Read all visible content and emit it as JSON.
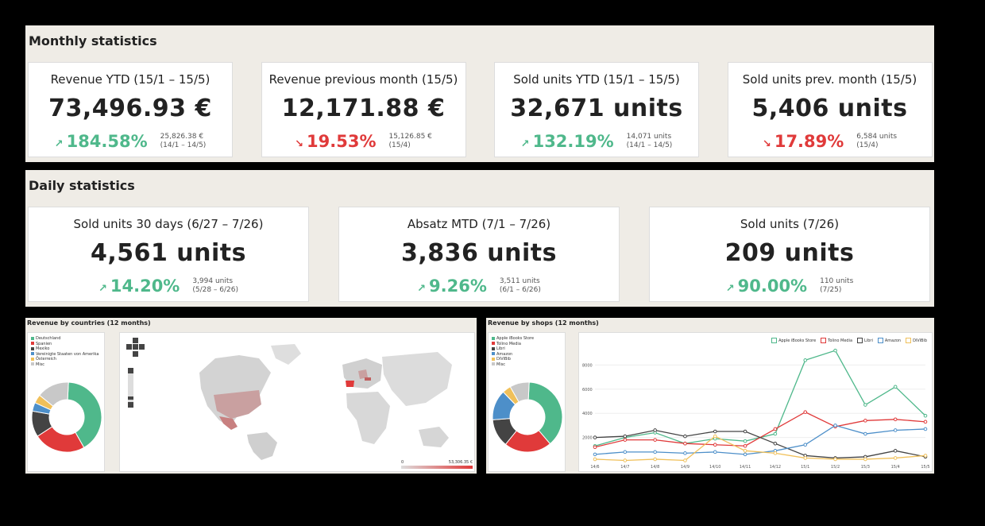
{
  "monthly": {
    "title": "Monthly statistics",
    "cards": [
      {
        "title": "Revenue YTD (15/1 – 15/5)",
        "value": "73,496.93 €",
        "pct": "184.58%",
        "dir": "up",
        "cmp1": "25,826.38 €",
        "cmp2": "(14/1 – 14/5)"
      },
      {
        "title": "Revenue previous month (15/5)",
        "value": "12,171.88 €",
        "pct": "19.53%",
        "dir": "down",
        "cmp1": "15,126.85 €",
        "cmp2": "(15/4)"
      },
      {
        "title": "Sold units YTD (15/1 – 15/5)",
        "value": "32,671 units",
        "pct": "132.19%",
        "dir": "up",
        "cmp1": "14,071 units",
        "cmp2": "(14/1 – 14/5)"
      },
      {
        "title": "Sold units prev. month (15/5)",
        "value": "5,406 units",
        "pct": "17.89%",
        "dir": "down",
        "cmp1": "6,584 units",
        "cmp2": "(15/4)"
      }
    ]
  },
  "daily": {
    "title": "Daily statistics",
    "cards": [
      {
        "title": "Sold units 30 days (6/27 – 7/26)",
        "value": "4,561 units",
        "pct": "14.20%",
        "dir": "up",
        "cmp1": "3,994 units",
        "cmp2": "(5/28 – 6/26)"
      },
      {
        "title": "Absatz MTD (7/1 – 7/26)",
        "value": "3,836 units",
        "pct": "9.26%",
        "dir": "up",
        "cmp1": "3,511 units",
        "cmp2": "(6/1 – 6/26)"
      },
      {
        "title": "Sold units (7/26)",
        "value": "209 units",
        "pct": "90.00%",
        "dir": "up",
        "cmp1": "110 units",
        "cmp2": "(7/25)"
      }
    ]
  },
  "arrows": {
    "up": "↗",
    "down": "↘"
  },
  "colors": {
    "up": "#4fb88b",
    "down": "#e03a3a"
  },
  "countries": {
    "title": "Revenue by countries (12 months)",
    "legend": [
      {
        "label": "Deutschland",
        "color": "#4fb88b"
      },
      {
        "label": "Spanien",
        "color": "#e03a3a"
      },
      {
        "label": "Mexiko",
        "color": "#444444"
      },
      {
        "label": "Vereinigte Staaten von Amerika",
        "color": "#4d8fc9"
      },
      {
        "label": "Österreich",
        "color": "#f0c05a"
      },
      {
        "label": "Misc",
        "color": "#c8c8c8"
      }
    ],
    "donut": [
      41,
      24,
      12,
      4,
      4,
      15
    ],
    "map_min": "0",
    "map_max": "53,306.35 €"
  },
  "shops": {
    "title": "Revenue by shops (12 months)",
    "legend": [
      {
        "label": "Apple iBooks Store",
        "color": "#4fb88b"
      },
      {
        "label": "Tolino Media",
        "color": "#e03a3a"
      },
      {
        "label": "Libri",
        "color": "#444444"
      },
      {
        "label": "Amazon",
        "color": "#4d8fc9"
      },
      {
        "label": "DiViBib",
        "color": "#f0c05a"
      },
      {
        "label": "Misc",
        "color": "#c8c8c8"
      }
    ],
    "donut": [
      38,
      22,
      13,
      14,
      4,
      9
    ]
  },
  "chart_data": {
    "type": "line",
    "x": [
      "14/6",
      "14/7",
      "14/8",
      "14/9",
      "14/10",
      "14/11",
      "14/12",
      "15/1",
      "15/2",
      "15/3",
      "15/4",
      "15/5"
    ],
    "ylim": [
      0,
      10000
    ],
    "yticks": [
      "8000",
      "6000",
      "4000",
      "2000"
    ],
    "legend_position": "top-right",
    "series": [
      {
        "name": "Apple iBooks Store",
        "color": "#4fb88b",
        "values": [
          1300,
          2000,
          2400,
          1500,
          1900,
          1700,
          2300,
          8400,
          9200,
          4700,
          6200,
          3800
        ]
      },
      {
        "name": "Tolino Media",
        "color": "#e03a3a",
        "values": [
          1200,
          1800,
          1800,
          1500,
          1400,
          1300,
          2700,
          4100,
          2900,
          3400,
          3500,
          3300
        ]
      },
      {
        "name": "Libri",
        "color": "#444444",
        "values": [
          2000,
          2100,
          2600,
          2100,
          2500,
          2500,
          1500,
          500,
          300,
          400,
          900,
          400
        ]
      },
      {
        "name": "Amazon",
        "color": "#4d8fc9",
        "values": [
          600,
          800,
          800,
          700,
          800,
          600,
          900,
          1400,
          3000,
          2300,
          2600,
          2700
        ]
      },
      {
        "name": "DiViBib",
        "color": "#f0c05a",
        "values": [
          200,
          100,
          200,
          100,
          2100,
          900,
          700,
          300,
          200,
          200,
          300,
          500
        ]
      }
    ]
  }
}
